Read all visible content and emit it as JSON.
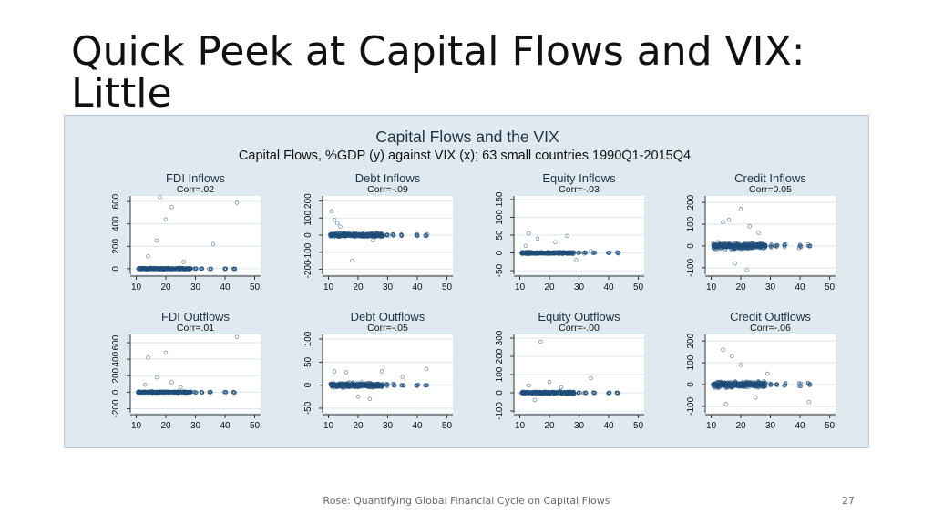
{
  "slide": {
    "title": "Quick Peek at Capital Flows and VIX: Little",
    "footer": "Rose: Quantifying Global Financial Cycle on Capital Flows",
    "page_number": "27"
  },
  "colors": {
    "frame_bg": "#dfe9ef",
    "plot_bg": "#ffffff",
    "marker": "#1f4e79",
    "grid": "#dde6ec"
  },
  "chart_data": {
    "type": "scatter",
    "title": "Capital Flows and the VIX",
    "subtitle": "Capital Flows, %GDP (y) against VIX (x); 63 small countries 1990Q1-2015Q4",
    "xticks": [
      10,
      20,
      30,
      40,
      50
    ],
    "xlim": [
      8,
      52
    ],
    "vix_levels": [
      11,
      12,
      13,
      14,
      15,
      16,
      17,
      18,
      19,
      20,
      21,
      22,
      23,
      24,
      25,
      26,
      27,
      28,
      30,
      32,
      35,
      40,
      43
    ],
    "panels": [
      {
        "title": "FDI Inflows",
        "corr": "Corr=.02",
        "yticks": [
          0,
          200,
          400,
          600
        ],
        "ylim": [
          -50,
          650
        ],
        "center": 0,
        "spread": 12,
        "outliers": [
          [
            18,
            640
          ],
          [
            22,
            550
          ],
          [
            20,
            440
          ],
          [
            17,
            250
          ],
          [
            26,
            60
          ],
          [
            36,
            220
          ],
          [
            44,
            590
          ],
          [
            14,
            110
          ]
        ]
      },
      {
        "title": "Debt Inflows",
        "corr": "Corr=-.09",
        "yticks": [
          -200,
          -100,
          0,
          100,
          200
        ],
        "ylim": [
          -230,
          230
        ],
        "center": 0,
        "spread": 18,
        "outliers": [
          [
            11,
            140
          ],
          [
            12,
            90
          ],
          [
            13,
            70
          ],
          [
            18,
            -150
          ],
          [
            25,
            -30
          ],
          [
            14,
            50
          ]
        ]
      },
      {
        "title": "Equity Inflows",
        "corr": "Corr=-.03",
        "yticks": [
          -50,
          0,
          50,
          100,
          150
        ],
        "ylim": [
          -60,
          160
        ],
        "center": 0,
        "spread": 5,
        "outliers": [
          [
            13,
            55
          ],
          [
            22,
            30
          ],
          [
            26,
            48
          ],
          [
            16,
            40
          ],
          [
            34,
            5
          ],
          [
            29,
            -20
          ],
          [
            12,
            20
          ]
        ]
      },
      {
        "title": "Credit Inflows",
        "corr": "Corr=0.05",
        "yticks": [
          -100,
          0,
          100,
          200
        ],
        "ylim": [
          -130,
          230
        ],
        "center": 0,
        "spread": 22,
        "outliers": [
          [
            16,
            120
          ],
          [
            20,
            170
          ],
          [
            14,
            110
          ],
          [
            23,
            90
          ],
          [
            18,
            -80
          ],
          [
            22,
            -110
          ],
          [
            26,
            60
          ]
        ]
      },
      {
        "title": "FDI Outflows",
        "corr": "Corr=.01",
        "yticks": [
          -200,
          0,
          200,
          400,
          600
        ],
        "ylim": [
          -250,
          700
        ],
        "center": 0,
        "spread": 14,
        "outliers": [
          [
            14,
            420
          ],
          [
            20,
            480
          ],
          [
            17,
            180
          ],
          [
            22,
            120
          ],
          [
            44,
            670
          ],
          [
            25,
            60
          ],
          [
            13,
            90
          ]
        ]
      },
      {
        "title": "Debt Outflows",
        "corr": "Corr=-.05",
        "yticks": [
          -50,
          0,
          50,
          100
        ],
        "ylim": [
          -60,
          110
        ],
        "center": 0,
        "spread": 8,
        "outliers": [
          [
            12,
            30
          ],
          [
            16,
            28
          ],
          [
            28,
            30
          ],
          [
            43,
            35
          ],
          [
            20,
            -25
          ],
          [
            24,
            -30
          ],
          [
            35,
            18
          ]
        ]
      },
      {
        "title": "Equity Outflows",
        "corr": "Corr=-.00",
        "yticks": [
          -100,
          0,
          100,
          200,
          300
        ],
        "ylim": [
          -110,
          320
        ],
        "center": 0,
        "spread": 10,
        "outliers": [
          [
            17,
            280
          ],
          [
            20,
            60
          ],
          [
            13,
            40
          ],
          [
            34,
            80
          ],
          [
            24,
            30
          ],
          [
            15,
            -40
          ]
        ]
      },
      {
        "title": "Credit Outflows",
        "corr": "Corr=-.06",
        "yticks": [
          -100,
          0,
          100,
          200
        ],
        "ylim": [
          -130,
          230
        ],
        "center": 0,
        "spread": 22,
        "outliers": [
          [
            14,
            160
          ],
          [
            17,
            130
          ],
          [
            20,
            90
          ],
          [
            15,
            -90
          ],
          [
            25,
            -60
          ],
          [
            43,
            -80
          ],
          [
            29,
            50
          ]
        ]
      }
    ]
  }
}
